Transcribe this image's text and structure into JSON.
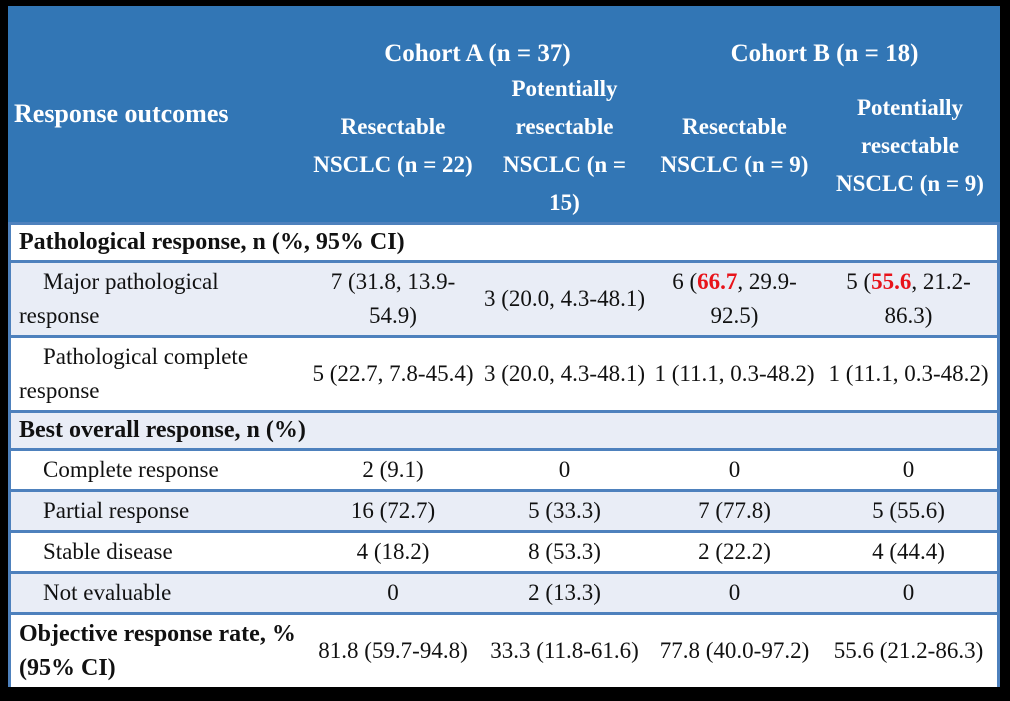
{
  "colors": {
    "header_background": "#3276b5",
    "header_text": "#ffffff",
    "row_alt_background": "#e9edf6",
    "row_background": "#ffffff",
    "grid_border": "#4e81bd",
    "frame": "#000000",
    "body_text": "#111111",
    "highlight_red": "#e8131a"
  },
  "table": {
    "header": {
      "row_label_header": "Response outcomes",
      "cohorts": [
        {
          "label": "Cohort A (n = 37)"
        },
        {
          "label": "Cohort B (n = 18)"
        }
      ],
      "columns": [
        "Resectable NSCLC (n = 22)",
        "Potentially resectable NSCLC (n = 15)",
        "Resectable NSCLC (n = 9)",
        "Potentially resectable NSCLC (n = 9)"
      ]
    },
    "rows": [
      {
        "type": "section",
        "bg": "white",
        "label": "Pathological response, n (%, 95% CI)"
      },
      {
        "type": "data",
        "bg": "blue",
        "indent": true,
        "label": "Major pathological response",
        "cells": [
          [
            {
              "t": "7 (31.8, 13.9-54.9)"
            }
          ],
          [
            {
              "t": "3 (20.0, 4.3-48.1)"
            }
          ],
          [
            {
              "t": "6 ("
            },
            {
              "t": "66.7",
              "red": true
            },
            {
              "t": ", 29.9-92.5)"
            }
          ],
          [
            {
              "t": "5 ("
            },
            {
              "t": "55.6",
              "red": true
            },
            {
              "t": ", 21.2-86.3)"
            }
          ]
        ]
      },
      {
        "type": "data",
        "bg": "white",
        "indent": true,
        "label": "Pathological complete response",
        "cells": [
          [
            {
              "t": "5 (22.7, 7.8-45.4)"
            }
          ],
          [
            {
              "t": "3 (20.0, 4.3-48.1)"
            }
          ],
          [
            {
              "t": "1 (11.1, 0.3-48.2)"
            }
          ],
          [
            {
              "t": "1 (11.1, 0.3-48.2)"
            }
          ]
        ]
      },
      {
        "type": "section",
        "bg": "blue",
        "label": "Best overall response, n (%)"
      },
      {
        "type": "data",
        "bg": "white",
        "indent": true,
        "label": "Complete response",
        "cells": [
          [
            {
              "t": "2 (9.1)"
            }
          ],
          [
            {
              "t": "0"
            }
          ],
          [
            {
              "t": "0"
            }
          ],
          [
            {
              "t": "0"
            }
          ]
        ]
      },
      {
        "type": "data",
        "bg": "blue",
        "indent": true,
        "label": "Partial response",
        "cells": [
          [
            {
              "t": "16 (72.7)"
            }
          ],
          [
            {
              "t": "5 (33.3)"
            }
          ],
          [
            {
              "t": "7 (77.8)"
            }
          ],
          [
            {
              "t": "5 (55.6)"
            }
          ]
        ]
      },
      {
        "type": "data",
        "bg": "white",
        "indent": true,
        "label": "Stable disease",
        "cells": [
          [
            {
              "t": "4 (18.2)"
            }
          ],
          [
            {
              "t": "8 (53.3)"
            }
          ],
          [
            {
              "t": "2 (22.2)"
            }
          ],
          [
            {
              "t": "4 (44.4)"
            }
          ]
        ]
      },
      {
        "type": "data",
        "bg": "blue",
        "indent": true,
        "label": "Not evaluable",
        "cells": [
          [
            {
              "t": "0"
            }
          ],
          [
            {
              "t": "2 (13.3)"
            }
          ],
          [
            {
              "t": "0"
            }
          ],
          [
            {
              "t": "0"
            }
          ]
        ]
      },
      {
        "type": "data",
        "bg": "white",
        "bold": true,
        "label": "Objective response rate, % (95% CI)",
        "cells": [
          [
            {
              "t": "81.8 (59.7-94.8)"
            }
          ],
          [
            {
              "t": "33.3 (11.8-61.6)"
            }
          ],
          [
            {
              "t": "77.8 (40.0-97.2)"
            }
          ],
          [
            {
              "t": "55.6 (21.2-86.3)"
            }
          ]
        ]
      }
    ]
  }
}
